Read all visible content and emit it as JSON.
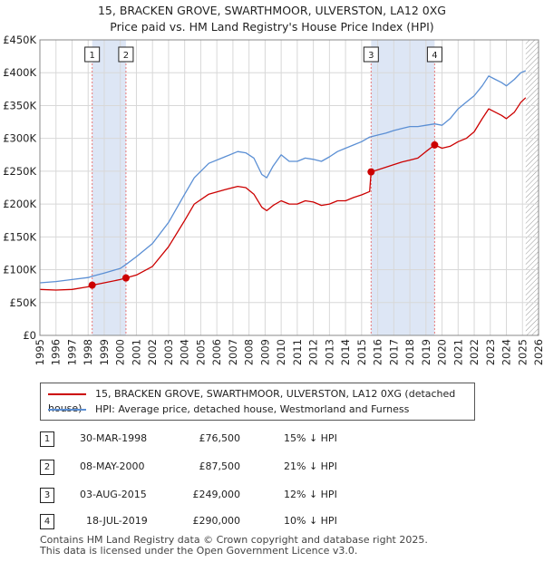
{
  "title": "15, BRACKEN GROVE, SWARTHMOOR, ULVERSTON, LA12 0XG",
  "subtitle": "Price paid vs. HM Land Registry's House Price Index (HPI)",
  "colors": {
    "property": "#cc0000",
    "hpi": "#5b8fd4",
    "grid": "#d8d8d8",
    "shade": "#dde6f5",
    "marker_line": "#e87878"
  },
  "chart_data": {
    "type": "line",
    "title": "Price paid vs. HM Land Registry's House Price Index (HPI)",
    "xlim": [
      1995.0,
      2026.0
    ],
    "ylim": [
      0,
      450000
    ],
    "yticks": [
      0,
      50000,
      100000,
      150000,
      200000,
      250000,
      300000,
      350000,
      400000,
      450000
    ],
    "ytick_labels": [
      "£0",
      "£50K",
      "£100K",
      "£150K",
      "£200K",
      "£250K",
      "£300K",
      "£350K",
      "£400K",
      "£450K"
    ],
    "xticks": [
      1995,
      1996,
      1997,
      1998,
      1999,
      2000,
      2001,
      2002,
      2003,
      2004,
      2005,
      2006,
      2007,
      2008,
      2009,
      2010,
      2011,
      2012,
      2013,
      2014,
      2015,
      2016,
      2017,
      2018,
      2019,
      2020,
      2021,
      2022,
      2023,
      2024,
      2025,
      2026
    ],
    "xtick_labels": [
      "1995",
      "1996",
      "1997",
      "1998",
      "1999",
      "2000",
      "2001",
      "2002",
      "2003",
      "2004",
      "2005",
      "2006",
      "2007",
      "2008",
      "2009",
      "2010",
      "2011",
      "2012",
      "2013",
      "2014",
      "2015",
      "2016",
      "2017",
      "2018",
      "2019",
      "2020",
      "2021",
      "2022",
      "2023",
      "2024",
      "2025",
      "2026"
    ],
    "grid": true,
    "shaded_ranges": [
      [
        1998.25,
        2000.35
      ],
      [
        2015.59,
        2019.54
      ]
    ],
    "hatched_from": 2025.2,
    "series": [
      {
        "name": "15, BRACKEN GROVE, SWARTHMOOR, ULVERSTON, LA12 0XG (detached house)",
        "x": [
          1995.0,
          1996.0,
          1997.0,
          1998.0,
          1998.25,
          1999.0,
          2000.0,
          2000.35,
          2001.0,
          2002.0,
          2003.0,
          2004.0,
          2004.6,
          2005.5,
          2006.5,
          2007.3,
          2007.8,
          2008.3,
          2008.8,
          2009.1,
          2009.5,
          2010.0,
          2010.5,
          2011.0,
          2011.5,
          2012.0,
          2012.5,
          2013.0,
          2013.5,
          2014.0,
          2014.5,
          2015.0,
          2015.5,
          2015.59,
          2016.0,
          2016.5,
          2017.0,
          2017.5,
          2018.0,
          2018.5,
          2019.0,
          2019.54,
          2020.0,
          2020.5,
          2021.0,
          2021.5,
          2022.0,
          2022.5,
          2022.9,
          2023.3,
          2023.7,
          2024.0,
          2024.5,
          2024.9,
          2025.2
        ],
        "y": [
          70000,
          69000,
          70000,
          74000,
          76500,
          80000,
          85000,
          87500,
          92000,
          105000,
          135000,
          175000,
          200000,
          215000,
          222000,
          227000,
          225000,
          215000,
          195000,
          190000,
          198000,
          205000,
          200000,
          200000,
          205000,
          203000,
          198000,
          200000,
          205000,
          205000,
          210000,
          214000,
          219000,
          249000,
          252000,
          256000,
          260000,
          264000,
          267000,
          270000,
          280000,
          290000,
          285000,
          288000,
          295000,
          300000,
          310000,
          330000,
          345000,
          340000,
          335000,
          330000,
          340000,
          355000,
          362000
        ]
      },
      {
        "name": "HPI: Average price, detached house, Westmorland and Furness",
        "x": [
          1995.0,
          1996.0,
          1997.0,
          1998.0,
          1998.25,
          1999.0,
          2000.0,
          2000.35,
          2001.0,
          2002.0,
          2003.0,
          2004.0,
          2004.6,
          2005.5,
          2006.5,
          2007.3,
          2007.8,
          2008.3,
          2008.8,
          2009.1,
          2009.5,
          2010.0,
          2010.5,
          2011.0,
          2011.5,
          2012.0,
          2012.5,
          2013.0,
          2013.5,
          2014.0,
          2014.5,
          2015.0,
          2015.5,
          2016.0,
          2016.5,
          2017.0,
          2017.5,
          2018.0,
          2018.5,
          2019.0,
          2019.54,
          2020.0,
          2020.5,
          2021.0,
          2021.5,
          2022.0,
          2022.5,
          2022.9,
          2023.3,
          2023.7,
          2024.0,
          2024.5,
          2024.9,
          2025.2
        ],
        "y": [
          80000,
          82000,
          85000,
          88000,
          90000,
          95000,
          102000,
          108000,
          120000,
          140000,
          172000,
          215000,
          240000,
          262000,
          272000,
          280000,
          278000,
          270000,
          245000,
          240000,
          258000,
          275000,
          265000,
          265000,
          270000,
          268000,
          265000,
          272000,
          280000,
          285000,
          290000,
          295000,
          302000,
          305000,
          308000,
          312000,
          315000,
          318000,
          318000,
          320000,
          322000,
          320000,
          330000,
          345000,
          355000,
          365000,
          380000,
          395000,
          390000,
          385000,
          380000,
          390000,
          400000,
          403000
        ]
      }
    ],
    "markers": [
      {
        "label": "1",
        "x": 1998.25,
        "y": 76500
      },
      {
        "label": "2",
        "x": 2000.35,
        "y": 87500
      },
      {
        "label": "3",
        "x": 2015.59,
        "y": 249000
      },
      {
        "label": "4",
        "x": 2019.54,
        "y": 290000
      }
    ]
  },
  "legend": {
    "property": "15, BRACKEN GROVE, SWARTHMOOR, ULVERSTON, LA12 0XG (detached house)",
    "hpi": "HPI: Average price, detached house, Westmorland and Furness"
  },
  "sales": [
    {
      "num": "1",
      "date": "30-MAR-1998",
      "price": "£76,500",
      "hpi": "15% ↓ HPI"
    },
    {
      "num": "2",
      "date": "08-MAY-2000",
      "price": "£87,500",
      "hpi": "21% ↓ HPI"
    },
    {
      "num": "3",
      "date": "03-AUG-2015",
      "price": "£249,000",
      "hpi": "12% ↓ HPI"
    },
    {
      "num": "4",
      "date": "18-JUL-2019",
      "price": "£290,000",
      "hpi": "10% ↓ HPI"
    }
  ],
  "footer": {
    "line1": "Contains HM Land Registry data © Crown copyright and database right 2025.",
    "line2": "This data is licensed under the Open Government Licence v3.0."
  }
}
